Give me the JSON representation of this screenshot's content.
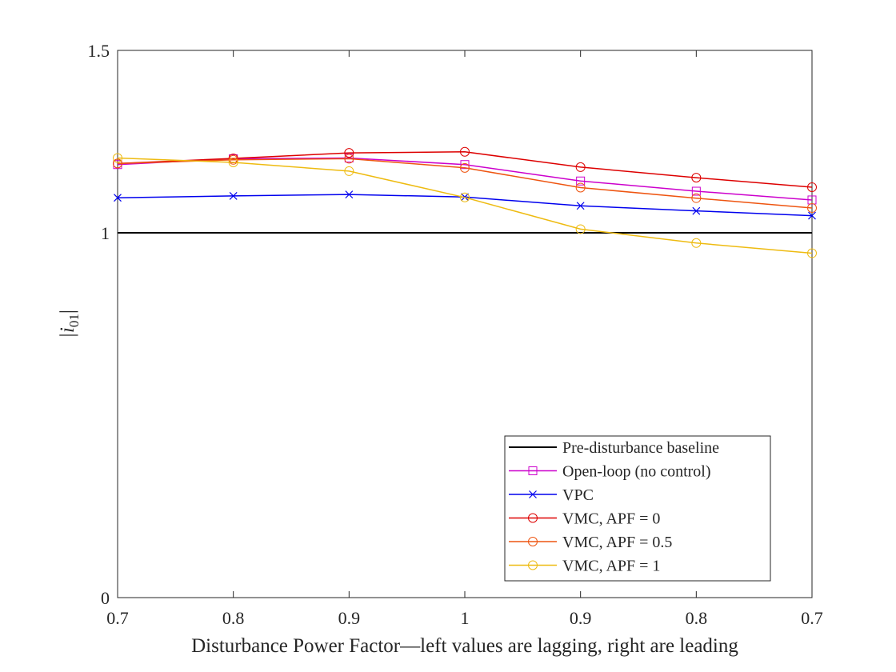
{
  "chart_data": {
    "type": "line",
    "title": "",
    "xlabel": "Disturbance Power Factor—left values are lagging, right are leading",
    "ylabel_base": "|i",
    "ylabel_subscript": "01",
    "ylabel_end": "|",
    "categories": [
      "0.7",
      "0.8",
      "0.9",
      "1",
      "0.9",
      "0.8",
      "0.7"
    ],
    "ylim": [
      0,
      1.5
    ],
    "yticks": [
      0,
      1,
      1.5
    ],
    "ytick_labels": [
      "0",
      "1",
      "1.5"
    ],
    "grid": false,
    "legend_position": "bottom-right",
    "series": [
      {
        "name": "Pre-disturbance baseline",
        "color": "#000000",
        "marker": "none",
        "values": [
          1,
          1,
          1,
          1,
          1,
          1,
          1
        ]
      },
      {
        "name": "Open-loop (no control)",
        "color": "#cc00cc",
        "marker": "square",
        "values": [
          1.187,
          1.203,
          1.205,
          1.187,
          1.142,
          1.114,
          1.09
        ]
      },
      {
        "name": "VPC",
        "color": "#0000ee",
        "marker": "x",
        "values": [
          1.096,
          1.101,
          1.105,
          1.098,
          1.074,
          1.06,
          1.047
        ]
      },
      {
        "name": "VMC, APF = 0",
        "color": "#dd0000",
        "marker": "circle",
        "values": [
          1.19,
          1.204,
          1.219,
          1.222,
          1.18,
          1.151,
          1.125
        ]
      },
      {
        "name": "VMC, APF = 0.5",
        "color": "#ee5511",
        "marker": "circle",
        "values": [
          1.19,
          1.2,
          1.203,
          1.178,
          1.124,
          1.095,
          1.068
        ]
      },
      {
        "name": "VMC, APF = 1",
        "color": "#eebb11",
        "marker": "circle",
        "values": [
          1.205,
          1.193,
          1.169,
          1.097,
          1.01,
          0.972,
          0.944
        ]
      }
    ]
  }
}
